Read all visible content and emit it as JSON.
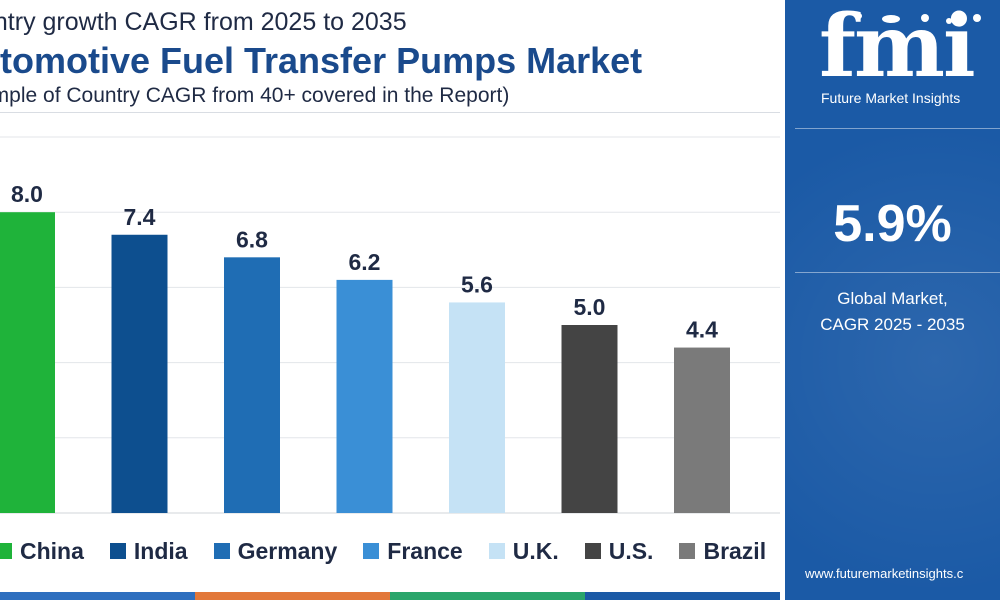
{
  "header": {
    "subtitle_top": "untry growth CAGR from 2025 to 2035",
    "title": "utomotive Fuel Transfer Pumps Market",
    "subtitle_bottom": "ample of Country CAGR from 40+ covered in the Report)"
  },
  "chart_data": {
    "type": "bar",
    "categories": [
      "China",
      "India",
      "Germany",
      "France",
      "U.K.",
      "U.S.",
      "Brazil"
    ],
    "values": [
      8.0,
      7.4,
      6.8,
      6.2,
      5.6,
      5.0,
      4.4
    ],
    "value_labels": [
      "8.0",
      "7.4",
      "6.8",
      "6.2",
      "5.6",
      "5.0",
      "4.4"
    ],
    "colors": [
      "#1fb33a",
      "#0d4f8f",
      "#1f6db4",
      "#3a8fd6",
      "#c5e2f5",
      "#444444",
      "#7a7a7a"
    ],
    "ylim": [
      0,
      10
    ],
    "grid": true,
    "legend_position": "bottom"
  },
  "legend": {
    "items": [
      {
        "label": "China",
        "color": "#1fb33a"
      },
      {
        "label": "India",
        "color": "#0d4f8f"
      },
      {
        "label": "Germany",
        "color": "#1f6db4"
      },
      {
        "label": "France",
        "color": "#3a8fd6"
      },
      {
        "label": "U.K.",
        "color": "#c5e2f5"
      },
      {
        "label": "U.S.",
        "color": "#444444"
      },
      {
        "label": "Brazil",
        "color": "#7a7a7a"
      }
    ]
  },
  "panel": {
    "logo_text": "fmi",
    "logo_caption": "Future Market Insights",
    "cagr_value": "5.9%",
    "cagr_line1": "Global Market,",
    "cagr_line2": "CAGR 2025 - 2035",
    "website": "www.futuremarketinsights.c"
  },
  "colors": {
    "panel_bg": "#1b5aa6",
    "title": "#1a4a8c",
    "strip": [
      "#2e6fbf",
      "#e2783a",
      "#2aa56b",
      "#1b5aa6"
    ]
  }
}
